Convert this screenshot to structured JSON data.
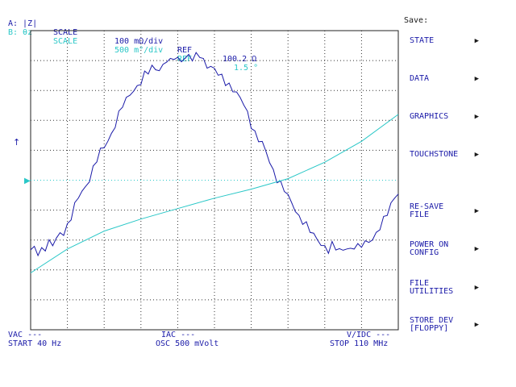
{
  "trace_a": {
    "label": "A: |Z|",
    "scale": "SCALE",
    "value": "100 mΩ/div",
    "ref": "REF",
    "ref_value": "100.2 Ω",
    "color": "#1a1aa8"
  },
  "trace_b": {
    "label": "B: θz",
    "scale": "SCALE",
    "value": "500 m°/div",
    "ref": "REF",
    "ref_value": "1.5 °",
    "color": "#29c7c7"
  },
  "menu": {
    "title": "Save:",
    "keys": [
      {
        "lines": [
          "STATE"
        ]
      },
      {
        "lines": [
          "DATA"
        ]
      },
      {
        "lines": [
          "GRAPHICS"
        ]
      },
      {
        "lines": [
          "TOUCHSTONE"
        ]
      },
      {
        "lines": [
          "RE-SAVE",
          "FILE"
        ]
      },
      {
        "lines": [
          "POWER ON",
          "CONFIG"
        ]
      },
      {
        "lines": [
          "FILE",
          "UTILITIES"
        ]
      },
      {
        "lines": [
          "STORE DEV",
          "[FLOPPY]"
        ]
      }
    ],
    "arrow": "▶"
  },
  "footer": {
    "vac": "VAC ---",
    "iac": "IAC ---",
    "vidc": "V/IDC ---",
    "start": "START 40 Hz",
    "osc": "OSC 500 mVolt",
    "stop": "STOP 110 MHz"
  },
  "markers": {
    "ref_a": "↑",
    "ref_b": "▶"
  },
  "chart_data": {
    "type": "line",
    "title": "",
    "xlabel": "",
    "ylabel": "",
    "x_range": [
      "40 Hz",
      "110 MHz"
    ],
    "grid": true,
    "divisions": {
      "x": 10,
      "y": 10
    },
    "series": [
      {
        "name": "A: |Z|",
        "color": "#1a1aa8",
        "unit_per_div": "100 mΩ",
        "ref": "100.2 Ω",
        "x_div": [
          0,
          0.1,
          0.2,
          0.3,
          0.4,
          0.5,
          0.6,
          0.7,
          0.8,
          0.9,
          1.0,
          1.1,
          1.2,
          1.3,
          1.4,
          1.5,
          1.6,
          1.7,
          1.8,
          1.9,
          2.0,
          2.1,
          2.2,
          2.3,
          2.4,
          2.5,
          2.6,
          2.7,
          2.8,
          2.9,
          3.0,
          3.1,
          3.2,
          3.3,
          3.4,
          3.5,
          3.6,
          3.7,
          3.8,
          3.9,
          4.0,
          4.1,
          4.2,
          4.3,
          4.4,
          4.5,
          4.6,
          4.7,
          4.8,
          4.9,
          5.0,
          5.1,
          5.2,
          5.3,
          5.4,
          5.5,
          5.6,
          5.7,
          5.8,
          5.9,
          6.0,
          6.1,
          6.2,
          6.3,
          6.4,
          6.5,
          6.6,
          6.7,
          6.8,
          6.9,
          7.0,
          7.1,
          7.2,
          7.3,
          7.4,
          7.5,
          7.6,
          7.7,
          7.8,
          7.9,
          8.0,
          8.1,
          8.2,
          8.3,
          8.4,
          8.5,
          8.6,
          8.7,
          8.8,
          8.9,
          9.0,
          9.1,
          9.2,
          9.3,
          9.4,
          9.5,
          9.6,
          9.7,
          9.8,
          9.9,
          10.0
        ],
        "values_div": [
          -2.4,
          -2.3,
          -2.4,
          -2.3,
          -2.2,
          -2.1,
          -2.2,
          -2.0,
          -1.8,
          -1.7,
          -1.5,
          -1.2,
          -0.9,
          -0.6,
          -0.4,
          -0.2,
          0.1,
          0.4,
          0.7,
          0.9,
          1.1,
          1.3,
          1.6,
          1.9,
          2.2,
          2.5,
          2.6,
          2.9,
          3.0,
          3.2,
          3.3,
          3.5,
          3.6,
          3.7,
          3.8,
          3.7,
          3.9,
          4.0,
          3.9,
          4.1,
          4.0,
          4.1,
          4.1,
          4.2,
          4.0,
          4.1,
          4.2,
          4.0,
          3.9,
          3.8,
          3.7,
          3.5,
          3.4,
          3.3,
          3.2,
          3.1,
          2.9,
          2.7,
          2.5,
          2.2,
          1.9,
          1.6,
          1.4,
          1.2,
          0.9,
          0.6,
          0.3,
          0.1,
          -0.1,
          -0.3,
          -0.6,
          -0.8,
          -1.0,
          -1.2,
          -1.3,
          -1.5,
          -1.7,
          -1.9,
          -2.0,
          -2.1,
          -2.2,
          -2.3,
          -2.2,
          -2.3,
          -2.4,
          -2.3,
          -2.2,
          -2.3,
          -2.2,
          -2.3,
          -2.2,
          -2.1,
          -2.0,
          -1.9,
          -1.8,
          -1.6,
          -1.4,
          -1.1,
          -0.8,
          -0.5,
          -0.4
        ]
      },
      {
        "name": "B: θz",
        "color": "#29c7c7",
        "unit_per_div": "500 m°",
        "ref": "1.5 °",
        "x_div": [
          0,
          1,
          2,
          3,
          4,
          5,
          6,
          7,
          8,
          9,
          10
        ],
        "values_div": [
          -3.1,
          -2.3,
          -1.7,
          -1.3,
          -0.95,
          -0.6,
          -0.3,
          0.05,
          0.6,
          1.3,
          2.2
        ]
      }
    ],
    "ylim_div": [
      -5,
      5
    ]
  }
}
